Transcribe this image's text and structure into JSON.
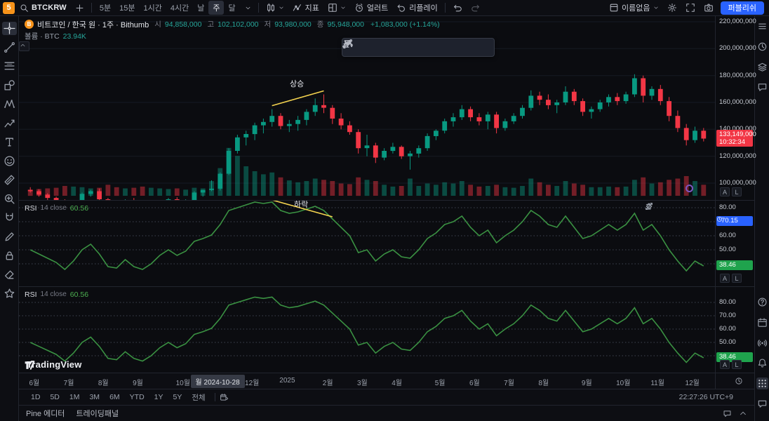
{
  "topbar": {
    "logo_text": "5",
    "symbol": "BTCKRW",
    "intervals": [
      "5분",
      "15분",
      "1시간",
      "4시간",
      "날",
      "주",
      "달"
    ],
    "active_interval": "주",
    "indicators_label": "지표",
    "alert_label": "얼러트",
    "replay_label": "리플레이",
    "layout_name": "이름없음",
    "publish_label": "퍼블리쉬"
  },
  "legend": {
    "title": "비트코인 / 한국 원 · 1주 · Bithumb",
    "open_label": "시",
    "open": "94,858,000",
    "high_label": "고",
    "high": "102,102,000",
    "low_label": "저",
    "low": "93,980,000",
    "close_label": "종",
    "close": "95,948,000",
    "change": "+1,083,000 (+1.14%)",
    "volume_label": "볼륨 · BTC",
    "volume_value": "23.94K"
  },
  "price_axis": {
    "labels": [
      "220,000,000",
      "200,000,000",
      "180,000,000",
      "160,000,000",
      "140,000,000",
      "120,000,000",
      "100,000,000"
    ],
    "last_price": "133,149,000",
    "countdown": "10:32:34"
  },
  "rsi1": {
    "name": "RSI",
    "params": "14 close",
    "value": "60.56",
    "levels": [
      "80.00",
      "60.00",
      "50.00",
      "40.00"
    ],
    "alert_value": "70.15",
    "last_value": "38.46"
  },
  "rsi2": {
    "name": "RSI",
    "params": "14 close",
    "value": "60.56",
    "levels": [
      "80.00",
      "70.00",
      "60.00",
      "50.00"
    ],
    "last_value": "38.46"
  },
  "timeaxis": {
    "crosshair_date": "월 2024-10-28"
  },
  "rangebar": {
    "ranges": [
      "1D",
      "5D",
      "1M",
      "3M",
      "6M",
      "YTD",
      "1Y",
      "5Y",
      "전체"
    ],
    "clock": "22:27:26 UTC+9"
  },
  "tabs": [
    "Pine 에디터",
    "트레이딩패널"
  ],
  "watermark": "TradingView",
  "scale_buttons": [
    "A",
    "L"
  ],
  "left_toolbar": [
    "crosshair",
    "trend-line",
    "fib-retracement",
    "shapes",
    "xabcd-pattern",
    "forecast",
    "text",
    "emoji",
    "ruler",
    "zoom",
    "magnet",
    "pencil",
    "lock",
    "eraser",
    "star"
  ],
  "float_toolbar": [
    "drag-handle",
    "trend-line",
    "horizontal-line",
    "ray",
    "parallel-channel",
    "curve",
    "xabcd-pattern",
    "zigzag",
    "text"
  ],
  "pane_toolbar": [
    "arrow-up",
    "arrow-down",
    "trash",
    "maximize",
    "more"
  ],
  "right_sidebar": {
    "top": [
      "watchlist",
      "clock",
      "layers",
      "chat"
    ],
    "bottom": [
      "help",
      "calendar",
      "broadcast",
      "bell",
      "apps"
    ],
    "corner": "message"
  },
  "chart_data": {
    "type": "candlestick",
    "title": "비트코인 / 한국 원 · 1주 · Bithumb",
    "symbol": "BTCKRW",
    "exchange": "Bithumb",
    "interval": "1주",
    "price_unit": "million KRW",
    "volume_unit": "K BTC",
    "ylim": [
      75,
      225
    ],
    "price_gridlines": [
      220,
      200,
      180,
      160,
      140,
      120,
      100
    ],
    "rsi_levels": [
      80,
      70,
      60,
      50,
      40
    ],
    "crosshair_index": 21,
    "crosshair": {
      "date": "월 2024-10-28",
      "open": 94.858,
      "high": 102.102,
      "low": 93.98,
      "close": 95.948,
      "change_pct": 1.14,
      "volume_kbtc": 23.94,
      "rsi": 60.56
    },
    "last": {
      "price": 133.149,
      "countdown": "10:32:34",
      "rsi": 38.46
    },
    "columns": [
      "open",
      "high",
      "low",
      "close",
      "volume_kbtc",
      "rsi"
    ],
    "candles": [
      [
        95,
        97,
        93,
        94,
        10,
        50
      ],
      [
        94,
        95.5,
        90,
        91.5,
        11,
        47
      ],
      [
        91.5,
        92.5,
        87,
        89,
        12,
        44
      ],
      [
        89,
        90,
        84,
        86.5,
        13,
        41
      ],
      [
        86.5,
        88,
        77,
        79.5,
        16,
        36
      ],
      [
        79.5,
        85,
        75.5,
        84,
        15,
        42
      ],
      [
        84,
        93,
        83,
        92,
        14,
        50
      ],
      [
        92,
        95,
        90,
        94,
        12,
        54
      ],
      [
        94,
        96,
        86,
        88,
        13,
        47
      ],
      [
        88,
        89,
        78,
        83,
        18,
        38
      ],
      [
        83,
        85.5,
        79,
        81.5,
        14,
        37
      ],
      [
        81.5,
        88,
        80,
        87,
        12,
        43
      ],
      [
        87,
        89,
        78.5,
        80.5,
        13,
        38
      ],
      [
        80.5,
        82,
        75,
        77.5,
        15,
        36
      ],
      [
        77.5,
        83,
        76,
        81.5,
        13,
        40
      ],
      [
        81.5,
        87,
        80,
        86,
        12,
        46
      ],
      [
        86,
        89,
        84,
        88,
        11,
        50
      ],
      [
        88,
        89.5,
        81,
        84,
        12,
        46
      ],
      [
        84,
        88,
        82,
        87,
        10,
        49
      ],
      [
        87,
        94,
        86,
        93,
        13,
        56
      ],
      [
        93,
        95,
        90,
        94.9,
        12,
        58
      ],
      [
        94.9,
        102.1,
        94,
        95.9,
        23.94,
        60.56
      ],
      [
        95.9,
        108,
        94.5,
        107,
        45,
        68
      ],
      [
        107,
        126,
        106,
        124,
        78,
        78
      ],
      [
        124,
        136,
        122,
        134,
        65,
        80
      ],
      [
        134,
        139,
        128,
        136.5,
        48,
        82
      ],
      [
        136.5,
        145,
        132,
        143,
        40,
        84
      ],
      [
        143,
        148,
        137,
        145.5,
        35,
        83
      ],
      [
        145.5,
        155,
        142,
        150,
        38,
        84
      ],
      [
        150,
        152,
        140,
        142.5,
        30,
        78
      ],
      [
        142.5,
        147,
        138,
        144,
        25,
        76
      ],
      [
        144,
        150,
        139,
        147,
        22,
        77
      ],
      [
        147,
        155,
        143,
        153,
        24,
        79
      ],
      [
        153,
        163,
        150,
        158,
        28,
        81
      ],
      [
        158,
        166,
        152,
        156,
        26,
        78
      ],
      [
        156,
        158,
        144,
        148,
        24,
        72
      ],
      [
        148,
        152,
        140,
        143,
        20,
        66
      ],
      [
        143,
        146,
        136,
        138,
        19,
        60
      ],
      [
        138,
        140,
        122,
        126,
        30,
        48
      ],
      [
        126,
        136,
        120,
        128,
        26,
        50
      ],
      [
        128,
        130,
        115,
        119,
        24,
        42
      ],
      [
        119,
        126,
        117,
        124,
        18,
        47
      ],
      [
        124,
        130,
        122,
        127,
        15,
        50
      ],
      [
        127,
        128,
        118,
        120,
        16,
        45
      ],
      [
        120,
        124,
        110,
        122,
        28,
        44
      ],
      [
        122,
        128,
        119,
        126,
        16,
        50
      ],
      [
        126,
        137,
        124,
        135,
        20,
        58
      ],
      [
        135,
        140,
        132,
        139,
        18,
        62
      ],
      [
        139,
        148,
        137,
        146,
        22,
        68
      ],
      [
        146,
        152,
        142,
        149,
        20,
        70
      ],
      [
        149,
        158,
        147,
        155,
        24,
        74
      ],
      [
        155,
        157,
        146,
        149,
        18,
        66
      ],
      [
        149,
        152,
        143,
        146,
        15,
        60
      ],
      [
        146,
        153,
        140,
        151,
        16,
        64
      ],
      [
        151,
        153,
        137,
        141,
        18,
        55
      ],
      [
        141,
        148,
        139,
        146,
        14,
        60
      ],
      [
        146,
        152,
        144,
        150,
        13,
        64
      ],
      [
        150,
        158,
        148,
        156,
        16,
        70
      ],
      [
        156,
        169,
        154,
        165,
        28,
        78
      ],
      [
        165,
        168,
        158,
        162,
        22,
        74
      ],
      [
        162,
        166,
        155,
        158,
        18,
        68
      ],
      [
        158,
        162,
        152,
        160,
        16,
        66
      ],
      [
        160,
        172,
        158,
        168,
        24,
        74
      ],
      [
        168,
        170,
        158,
        161,
        20,
        66
      ],
      [
        161,
        163,
        150,
        153,
        18,
        58
      ],
      [
        153,
        157,
        148,
        155,
        14,
        60
      ],
      [
        155,
        162,
        153,
        160,
        14,
        64
      ],
      [
        160,
        166,
        157,
        164,
        15,
        68
      ],
      [
        164,
        167,
        158,
        161,
        14,
        64
      ],
      [
        161,
        168,
        159,
        166,
        15,
        68
      ],
      [
        166,
        181,
        164,
        178,
        26,
        76
      ],
      [
        178,
        180,
        160,
        165,
        30,
        64
      ],
      [
        165,
        172,
        162,
        170,
        20,
        68
      ],
      [
        170,
        173,
        158,
        161,
        22,
        60
      ],
      [
        161,
        164,
        146,
        150,
        26,
        50
      ],
      [
        150,
        154,
        138,
        141,
        28,
        42
      ],
      [
        141,
        144,
        128,
        132,
        32,
        35
      ],
      [
        132,
        142,
        130,
        139,
        24,
        42
      ],
      [
        139,
        141,
        131,
        133.149,
        18,
        38.46
      ]
    ],
    "months": [
      {
        "label": "6월",
        "i": 1
      },
      {
        "label": "7월",
        "i": 5
      },
      {
        "label": "8월",
        "i": 9
      },
      {
        "label": "9월",
        "i": 13
      },
      {
        "label": "10월",
        "i": 18
      },
      {
        "label": "12월",
        "i": 26
      },
      {
        "label": "2025",
        "i": 30
      },
      {
        "label": "2월",
        "i": 35
      },
      {
        "label": "3월",
        "i": 39
      },
      {
        "label": "4월",
        "i": 43
      },
      {
        "label": "5월",
        "i": 48
      },
      {
        "label": "6월",
        "i": 52
      },
      {
        "label": "7월",
        "i": 56
      },
      {
        "label": "8월",
        "i": 60
      },
      {
        "label": "9월",
        "i": 65
      },
      {
        "label": "10월",
        "i": 69
      },
      {
        "label": "11월",
        "i": 73
      },
      {
        "label": "12월",
        "i": 77
      }
    ],
    "annotations": [
      {
        "pane": "price",
        "text": "상승",
        "from": 28,
        "to": 34
      },
      {
        "pane": "rsi1",
        "text": "하락",
        "from": 28,
        "to": 35
      }
    ]
  }
}
